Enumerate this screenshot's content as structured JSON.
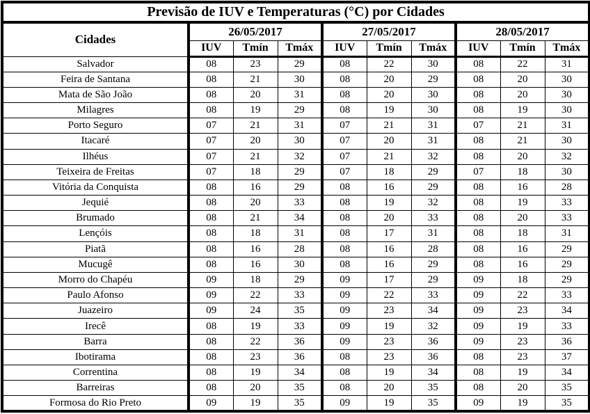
{
  "title": "Previsão de IUV e Temperaturas (°C) por Cidades",
  "table": {
    "city_header": "Cidades",
    "dates": [
      "26/05/2017",
      "27/05/2017",
      "28/05/2017"
    ],
    "subcolumns": [
      "IUV",
      "Tmín",
      "Tmáx"
    ],
    "rows": [
      {
        "city": "Salvador",
        "values": [
          "08",
          "23",
          "29",
          "08",
          "22",
          "30",
          "08",
          "22",
          "31"
        ]
      },
      {
        "city": "Feira de Santana",
        "values": [
          "08",
          "21",
          "30",
          "08",
          "20",
          "29",
          "08",
          "20",
          "30"
        ]
      },
      {
        "city": "Mata de São João",
        "values": [
          "08",
          "20",
          "31",
          "08",
          "20",
          "30",
          "08",
          "20",
          "30"
        ]
      },
      {
        "city": "Milagres",
        "values": [
          "08",
          "19",
          "29",
          "08",
          "19",
          "30",
          "08",
          "19",
          "30"
        ]
      },
      {
        "city": "Porto Seguro",
        "values": [
          "07",
          "21",
          "31",
          "07",
          "21",
          "31",
          "07",
          "21",
          "31"
        ]
      },
      {
        "city": "Itacaré",
        "values": [
          "07",
          "20",
          "30",
          "07",
          "20",
          "31",
          "08",
          "21",
          "30"
        ]
      },
      {
        "city": "Ilhéus",
        "values": [
          "07",
          "21",
          "32",
          "07",
          "21",
          "32",
          "08",
          "20",
          "32"
        ]
      },
      {
        "city": "Teixeira de Freitas",
        "values": [
          "07",
          "18",
          "29",
          "07",
          "18",
          "29",
          "07",
          "18",
          "30"
        ]
      },
      {
        "city": "Vitória da Conquista",
        "values": [
          "08",
          "16",
          "29",
          "08",
          "16",
          "29",
          "08",
          "16",
          "28"
        ]
      },
      {
        "city": "Jequié",
        "values": [
          "08",
          "20",
          "33",
          "08",
          "19",
          "32",
          "08",
          "19",
          "33"
        ]
      },
      {
        "city": "Brumado",
        "values": [
          "08",
          "21",
          "34",
          "08",
          "20",
          "33",
          "08",
          "20",
          "33"
        ]
      },
      {
        "city": "Lençóis",
        "values": [
          "08",
          "18",
          "31",
          "08",
          "17",
          "31",
          "08",
          "18",
          "31"
        ]
      },
      {
        "city": "Piatã",
        "values": [
          "08",
          "16",
          "28",
          "08",
          "16",
          "28",
          "08",
          "16",
          "29"
        ]
      },
      {
        "city": "Mucugê",
        "values": [
          "08",
          "16",
          "30",
          "08",
          "16",
          "29",
          "08",
          "16",
          "29"
        ]
      },
      {
        "city": "Morro do Chapéu",
        "values": [
          "09",
          "18",
          "29",
          "09",
          "17",
          "29",
          "09",
          "18",
          "29"
        ]
      },
      {
        "city": "Paulo Afonso",
        "values": [
          "09",
          "22",
          "33",
          "09",
          "22",
          "33",
          "09",
          "22",
          "33"
        ]
      },
      {
        "city": "Juazeiro",
        "values": [
          "09",
          "24",
          "35",
          "09",
          "23",
          "34",
          "09",
          "23",
          "34"
        ]
      },
      {
        "city": "Irecê",
        "values": [
          "08",
          "19",
          "33",
          "09",
          "19",
          "32",
          "09",
          "19",
          "33"
        ]
      },
      {
        "city": "Barra",
        "values": [
          "08",
          "22",
          "36",
          "09",
          "23",
          "36",
          "09",
          "23",
          "36"
        ]
      },
      {
        "city": "Ibotirama",
        "values": [
          "08",
          "23",
          "36",
          "08",
          "23",
          "36",
          "08",
          "23",
          "37"
        ]
      },
      {
        "city": "Correntina",
        "values": [
          "08",
          "19",
          "34",
          "08",
          "19",
          "34",
          "08",
          "19",
          "34"
        ]
      },
      {
        "city": "Barreiras",
        "values": [
          "08",
          "20",
          "35",
          "08",
          "20",
          "35",
          "08",
          "20",
          "35"
        ]
      },
      {
        "city": "Formosa do Rio Preto",
        "values": [
          "09",
          "19",
          "35",
          "09",
          "19",
          "35",
          "09",
          "19",
          "35"
        ]
      }
    ]
  },
  "colors": {
    "border": "#000000",
    "background": "#ffffff",
    "text": "#000000"
  }
}
